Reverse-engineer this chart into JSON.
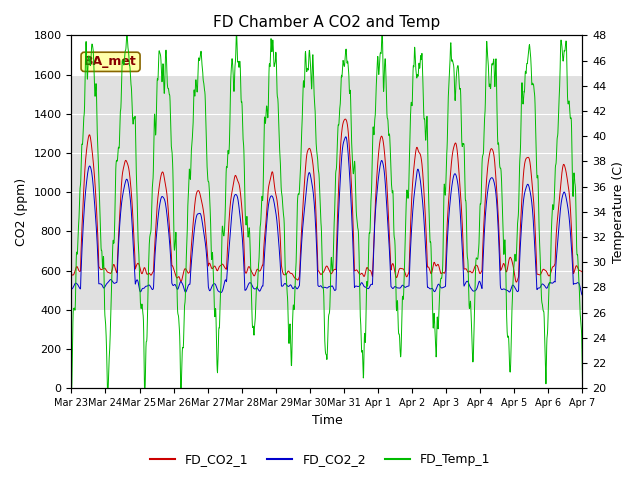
{
  "title": "FD Chamber A CO2 and Temp",
  "xlabel": "Time",
  "ylabel_left": "CO2 (ppm)",
  "ylabel_right": "Temperature (C)",
  "ylim_left": [
    0,
    1800
  ],
  "ylim_right": [
    20,
    48
  ],
  "annotation": "BA_met",
  "legend": [
    "FD_CO2_1",
    "FD_CO2_2",
    "FD_Temp_1"
  ],
  "colors": [
    "#cc0000",
    "#0000cc",
    "#00bb00"
  ],
  "xtick_labels": [
    "Mar 23",
    "Mar 24",
    "Mar 25",
    "Mar 26",
    "Mar 27",
    "Mar 28",
    "Mar 29",
    "Mar 30",
    "Mar 31",
    "Apr 1",
    "Apr 2",
    "Apr 3",
    "Apr 4",
    "Apr 5",
    "Apr 6",
    "Apr 7"
  ],
  "yticks_left": [
    0,
    200,
    400,
    600,
    800,
    1000,
    1200,
    1400,
    1600,
    1800
  ],
  "yticks_right": [
    20,
    22,
    24,
    26,
    28,
    30,
    32,
    34,
    36,
    38,
    40,
    42,
    44,
    46,
    48
  ],
  "shaded_band": [
    400,
    1600
  ],
  "shaded_color": "#e0e0e0",
  "background_color": "#ffffff",
  "n_points": 2016,
  "figsize": [
    6.4,
    4.8
  ],
  "dpi": 100
}
